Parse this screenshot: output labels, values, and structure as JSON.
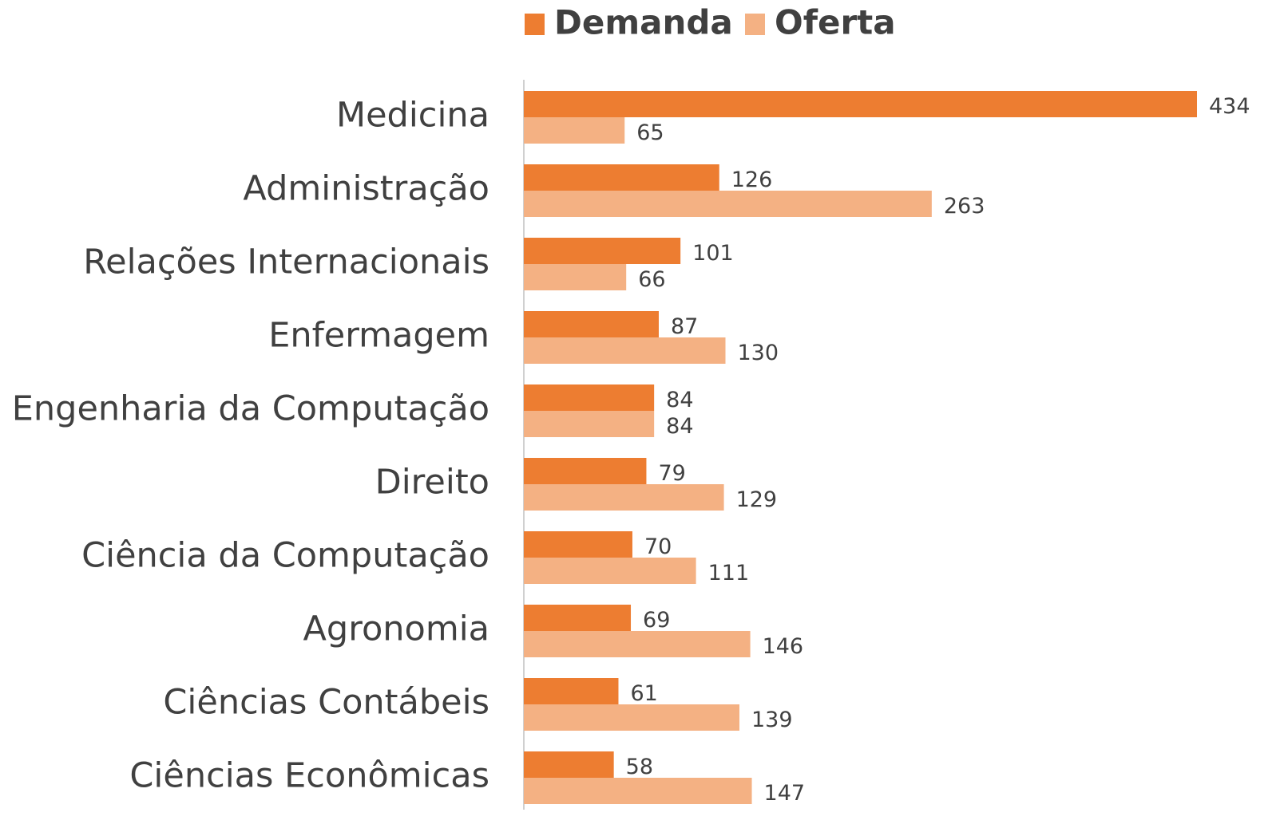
{
  "chart_data": {
    "type": "bar",
    "orientation": "horizontal",
    "categories": [
      "Medicina",
      "Administração",
      "Relações Internacionais",
      "Enfermagem",
      "Engenharia da Computação",
      "Direito",
      "Ciência da Computação",
      "Agronomia",
      "Ciências Contábeis",
      "Ciências Econômicas"
    ],
    "series": [
      {
        "name": "Demanda",
        "color": "#ED7D31",
        "values": [
          434,
          126,
          101,
          87,
          84,
          79,
          70,
          69,
          61,
          58
        ]
      },
      {
        "name": "Oferta",
        "color": "#F4B183",
        "values": [
          65,
          263,
          66,
          130,
          84,
          129,
          111,
          146,
          139,
          147
        ]
      }
    ],
    "legend": "top"
  }
}
